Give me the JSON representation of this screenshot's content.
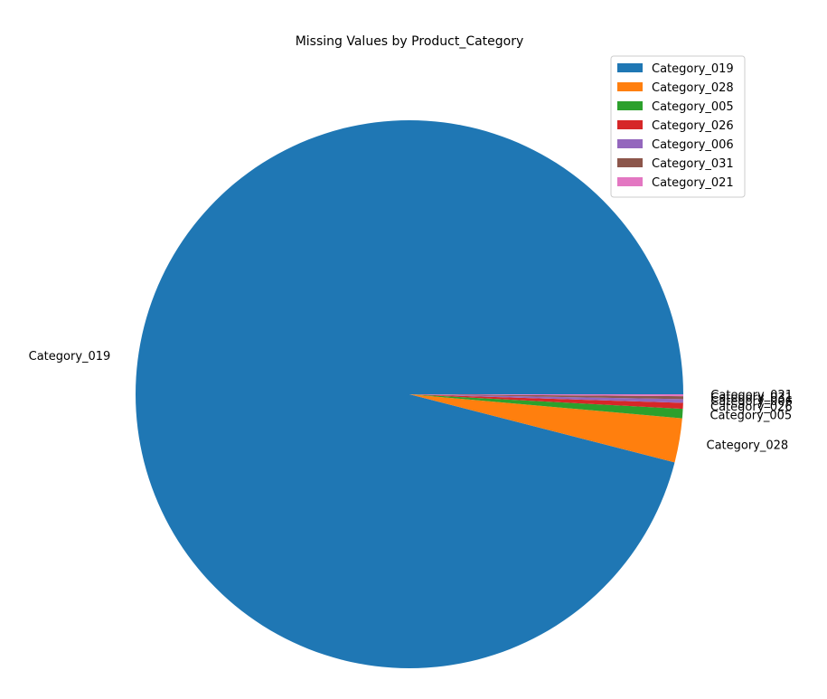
{
  "chart_data": {
    "type": "pie",
    "title": "Missing Values by Product_Category",
    "categories": [
      "Category_019",
      "Category_028",
      "Category_005",
      "Category_026",
      "Category_006",
      "Category_031",
      "Category_021"
    ],
    "values": [
      96.0,
      2.6,
      0.55,
      0.35,
      0.22,
      0.17,
      0.11
    ],
    "colors": [
      "#1f77b4",
      "#ff7f0e",
      "#2ca02c",
      "#d62728",
      "#9467bd",
      "#8c564b",
      "#e377c2"
    ],
    "legend": "top-right"
  }
}
